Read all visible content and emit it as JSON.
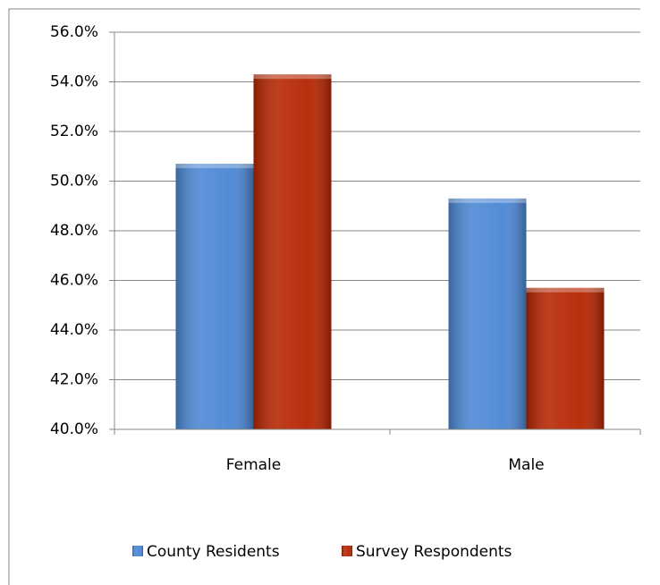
{
  "chart_data": {
    "type": "bar",
    "categories": [
      "Female",
      "Male"
    ],
    "series": [
      {
        "name": "County Residents",
        "color": "#4a86d4",
        "values": [
          50.7,
          49.3
        ]
      },
      {
        "name": "Survey Respondents",
        "color": "#b52400",
        "values": [
          54.3,
          45.7
        ]
      }
    ],
    "ylim": [
      40,
      56
    ],
    "yticks": [
      {
        "value": 40,
        "label": "40.0%"
      },
      {
        "value": 42,
        "label": "42.0%"
      },
      {
        "value": 44,
        "label": "44.0%"
      },
      {
        "value": 46,
        "label": "46.0%"
      },
      {
        "value": 48,
        "label": "48.0%"
      },
      {
        "value": 50,
        "label": "50.0%"
      },
      {
        "value": 52,
        "label": "52.0%"
      },
      {
        "value": 54,
        "label": "54.0%"
      },
      {
        "value": 56,
        "label": "56.0%"
      }
    ],
    "grid": true,
    "legend": "bottom"
  }
}
